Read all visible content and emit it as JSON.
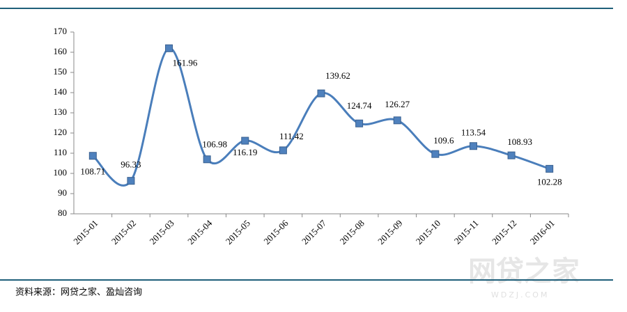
{
  "chart_data": {
    "type": "line",
    "categories": [
      "2015-01",
      "2015-02",
      "2015-03",
      "2015-04",
      "2015-05",
      "2015-06",
      "2015-07",
      "2015-08",
      "2015-09",
      "2015-10",
      "2015-11",
      "2015-12",
      "2016-01"
    ],
    "series": [
      {
        "color": "#4a7ebb",
        "values": [
          108.71,
          96.33,
          161.96,
          106.98,
          116.19,
          111.42,
          139.62,
          124.74,
          126.27,
          109.6,
          113.54,
          108.93,
          102.28
        ]
      }
    ],
    "ylim": [
      80,
      170
    ],
    "yticks": [
      80,
      90,
      100,
      110,
      120,
      130,
      140,
      150,
      160,
      170
    ],
    "grid": false
  },
  "source": "资料来源：网贷之家、盈灿咨询",
  "watermark": "网贷之家",
  "watermark_sub": "WDZJ.COM"
}
